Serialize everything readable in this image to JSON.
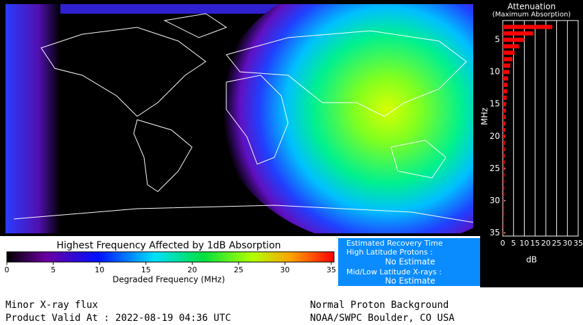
{
  "colorbar": {
    "title": "Highest Frequency Affected by 1dB Absorption",
    "xlabel": "Degraded Frequency (MHz)",
    "lim": [
      0,
      35
    ],
    "ticks": [
      0,
      5,
      10,
      15,
      20,
      25,
      30,
      35
    ]
  },
  "recovery": {
    "title": "Estimated Recovery Time",
    "high_label": "High Latitude Protons :",
    "high_value": "No Estimate",
    "mid_label": "Mid/Low Latitude X-rays :",
    "mid_value": "No Estimate"
  },
  "footer": {
    "left_1": "Minor X-ray flux",
    "left_2": "Product Valid At : 2022-08-19 04:36 UTC",
    "right_1": "Normal Proton Background",
    "right_2": "NOAA/SWPC Boulder, CO USA"
  },
  "chart_data": {
    "type": "bar",
    "orientation": "horizontal",
    "title": "Attenuation",
    "subtitle": "(Maximum Absorption)",
    "xlabel": "dB",
    "ylabel": "MHz",
    "color": "#ff0000",
    "frequencies": [
      3,
      4,
      5,
      6,
      7,
      8,
      9,
      10,
      11,
      12,
      13,
      14,
      15,
      16,
      17,
      18,
      19,
      20,
      21,
      22,
      23,
      24,
      25,
      26,
      27,
      28,
      29,
      30,
      31,
      32,
      33,
      34,
      35
    ],
    "values": [
      23,
      14,
      10,
      7.5,
      5.5,
      4.5,
      3.5,
      3,
      2.5,
      2.2,
      2,
      1.8,
      1.6,
      1.5,
      1.4,
      1.3,
      1.2,
      1.1,
      1,
      1,
      0.9,
      0.9,
      0.8,
      0.8,
      0.7,
      0.7,
      0.7,
      0.6,
      0.6,
      0.6,
      0.5,
      0.5,
      0.5
    ],
    "xlim": [
      0,
      35
    ],
    "xticks": [
      0,
      5,
      10,
      15,
      20,
      25,
      30,
      35
    ],
    "ylim": [
      2,
      35.5
    ],
    "yticks": [
      5,
      10,
      15,
      20,
      25,
      30,
      35
    ],
    "grid": true
  }
}
